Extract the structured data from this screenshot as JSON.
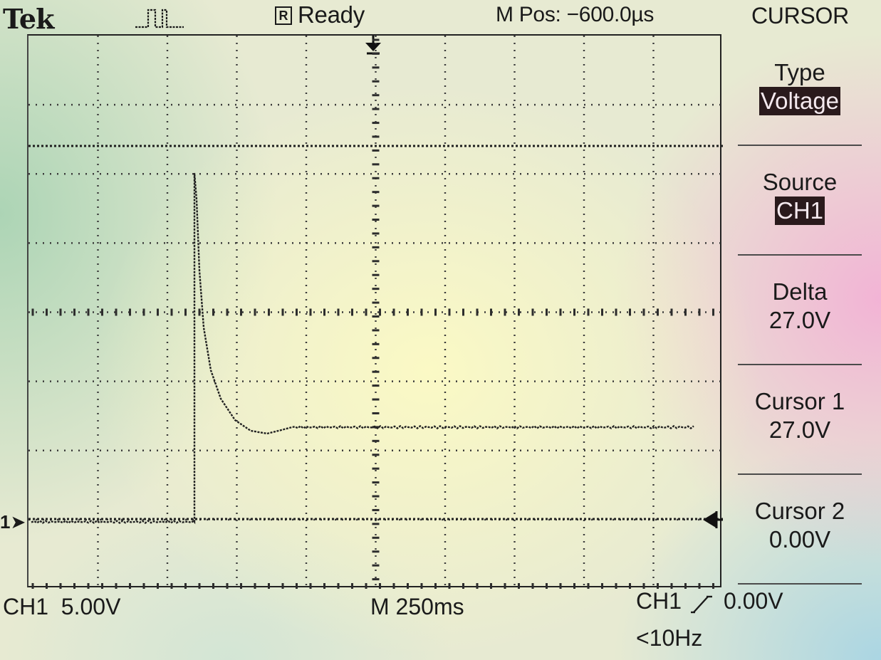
{
  "header": {
    "brand": "Tek",
    "trigger_icon": "trigger-pulse-icon",
    "acq_icon_letter": "R",
    "status": "Ready",
    "mpos": "M Pos: −600.0µs"
  },
  "menu": {
    "title": "CURSOR",
    "items": [
      {
        "label": "Type",
        "value": "Voltage",
        "highlighted": true
      },
      {
        "label": "Source",
        "value": "CH1",
        "highlighted": true
      },
      {
        "label": "Delta",
        "value": "27.0V",
        "highlighted": false
      },
      {
        "label": "Cursor 1",
        "value": "27.0V",
        "highlighted": false
      },
      {
        "label": "Cursor 2",
        "value": "0.00V",
        "highlighted": false
      }
    ]
  },
  "display": {
    "channel_marker": "1"
  },
  "footer": {
    "ch1_scale": "CH1  5.00V",
    "timebase": "M 250ms",
    "trig_source": "CH1",
    "trig_level": "0.00V",
    "trig_freq": "<10Hz"
  },
  "colors": {
    "trace": "#222222",
    "highlight_bg": "#2a1a1c",
    "highlight_fg": "#f4e9ee"
  }
}
